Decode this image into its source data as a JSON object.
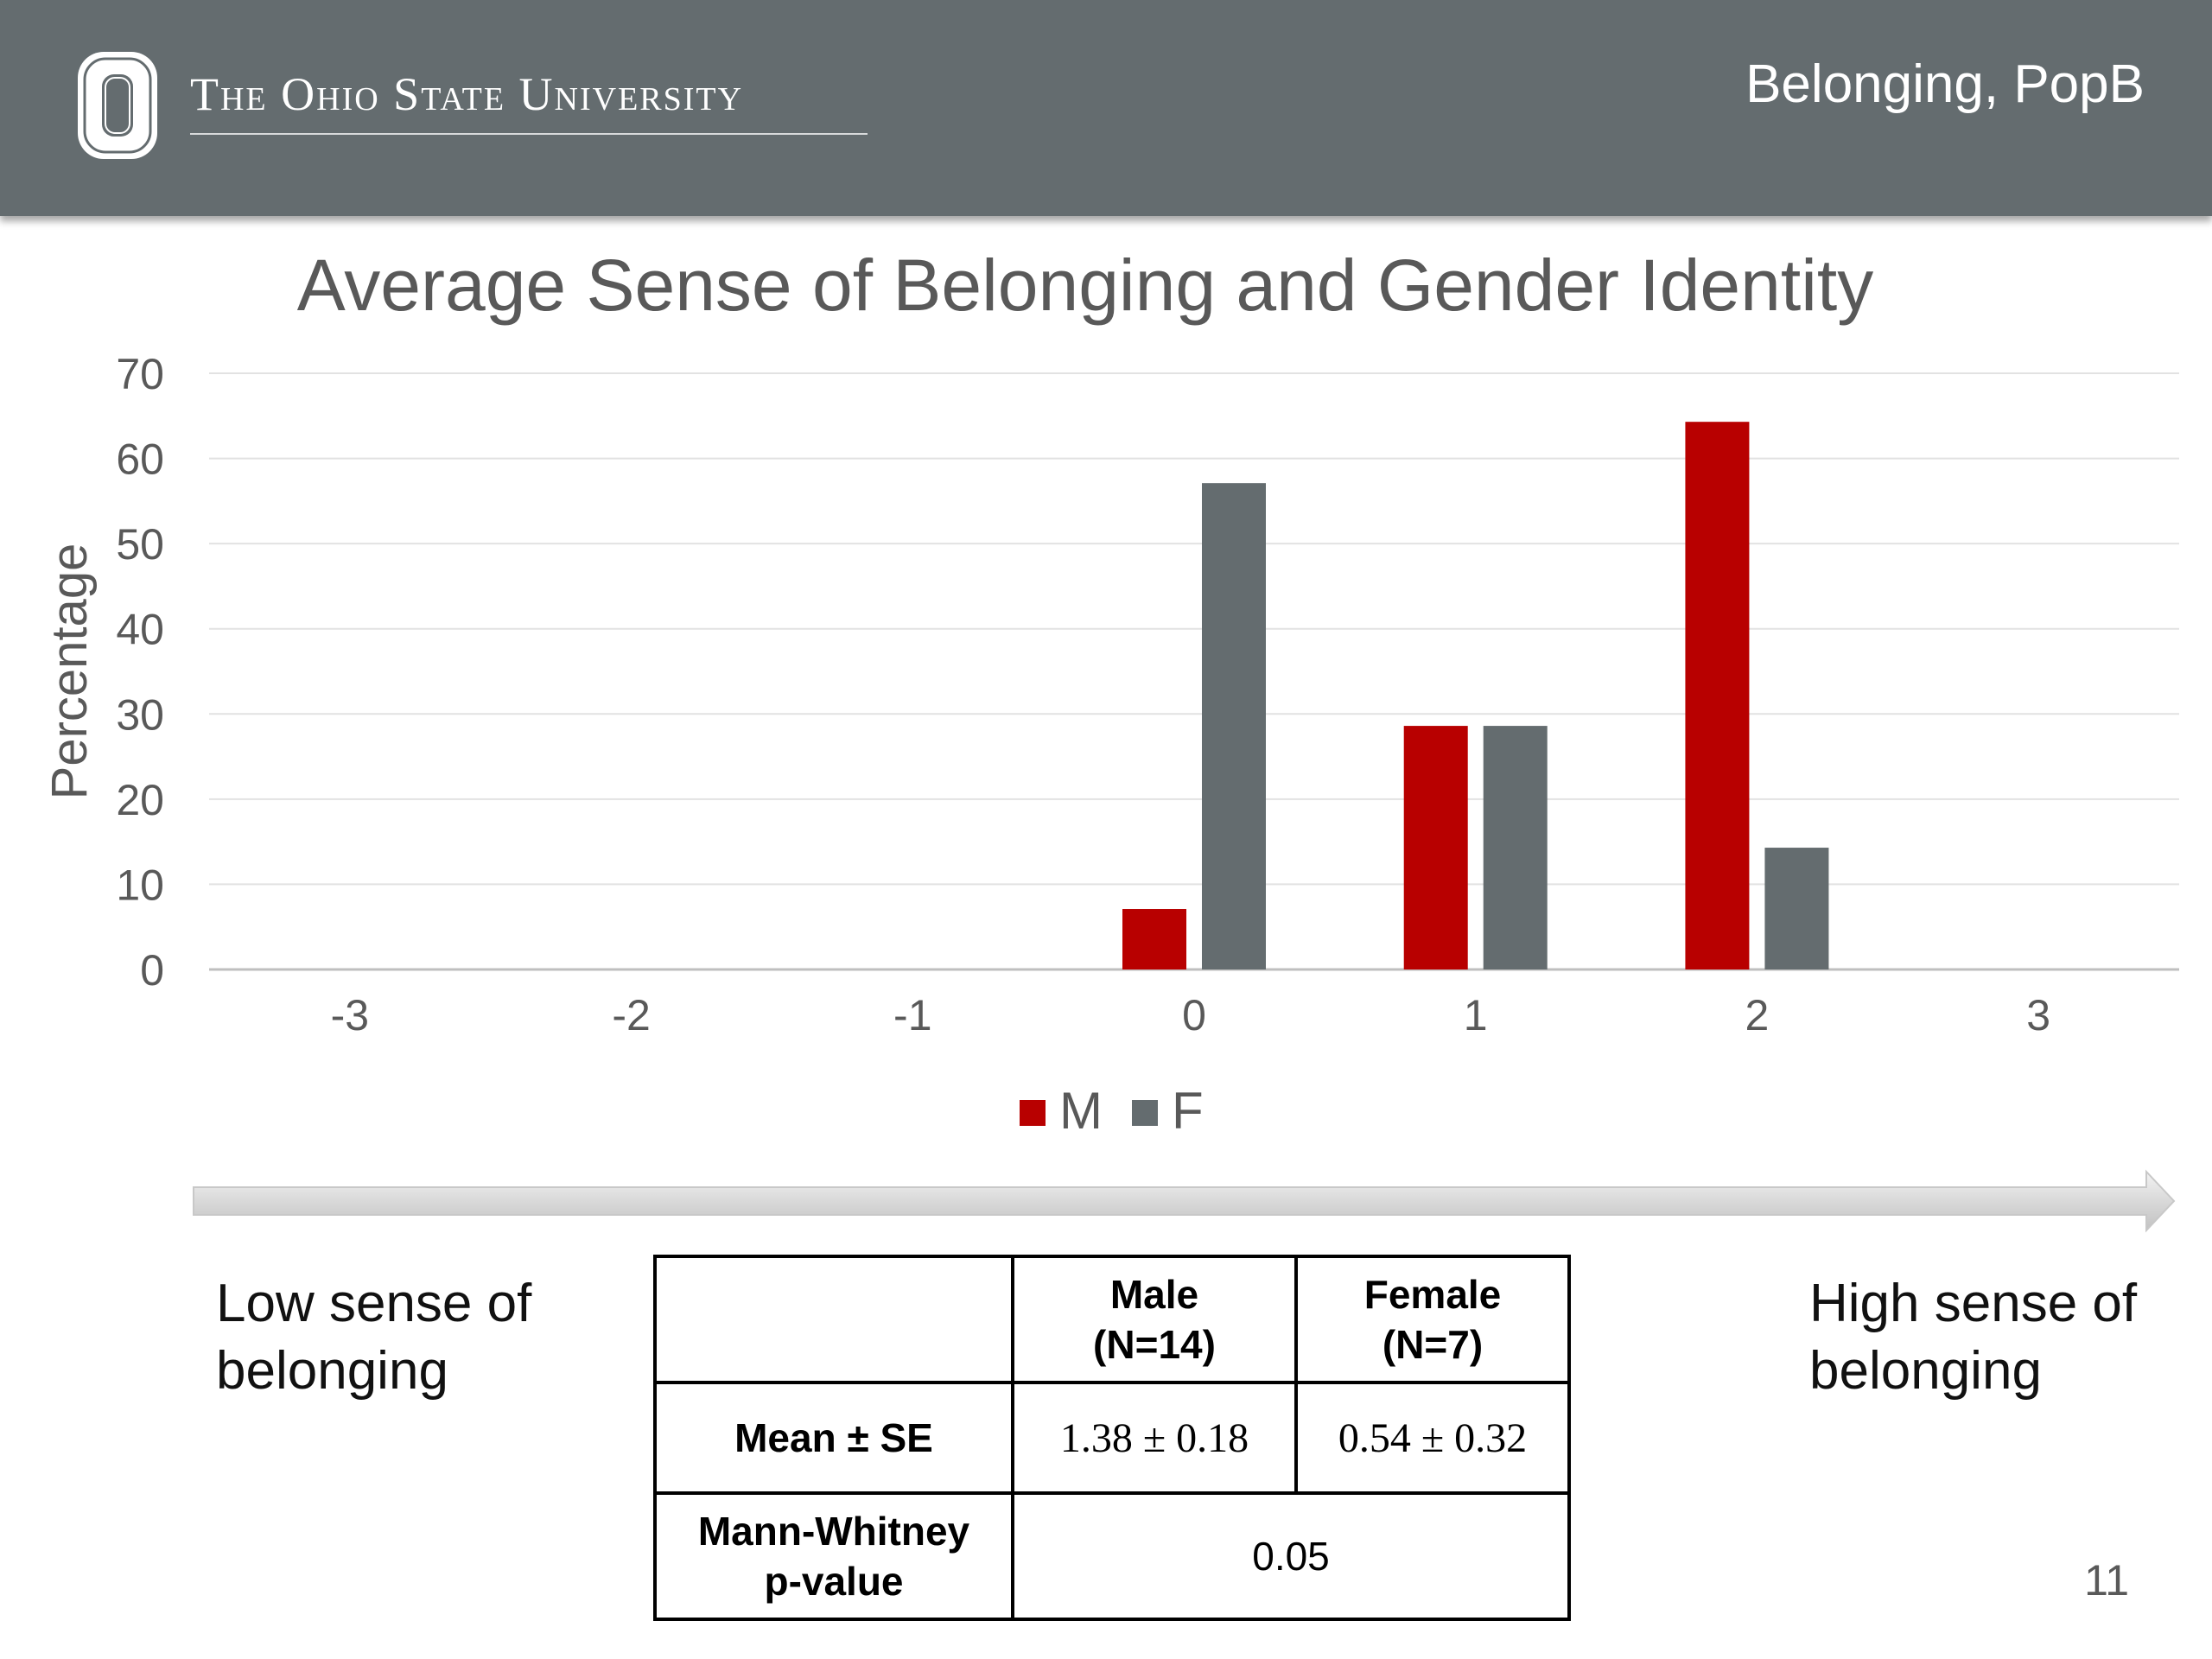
{
  "header": {
    "university": "The Ohio State University",
    "title": "Belonging, PopB"
  },
  "chart_data": {
    "type": "bar",
    "title": "Average Sense of Belonging and Gender Identity",
    "xlabel": "",
    "ylabel": "Percentage",
    "categories": [
      "-3",
      "-2",
      "-1",
      "0",
      "1",
      "2",
      "3"
    ],
    "series": [
      {
        "name": "M",
        "color": "#b80000",
        "values": [
          0,
          0,
          0,
          7.1,
          28.6,
          64.3,
          0
        ]
      },
      {
        "name": "F",
        "color": "#646c6f",
        "values": [
          0,
          0,
          0,
          57.1,
          28.6,
          14.3,
          0
        ]
      }
    ],
    "ylim": [
      0,
      70
    ],
    "yticks": [
      0,
      10,
      20,
      30,
      40,
      50,
      60,
      70
    ],
    "grid": true,
    "legend": "bottom"
  },
  "scale": {
    "low": "Low sense of belonging",
    "high": "High sense of belonging"
  },
  "stats_table": {
    "male_header": "Male",
    "male_n": "(N=14)",
    "female_header": "Female",
    "female_n": "(N=7)",
    "mean_label": "Mean ± SE",
    "male_mean": "1.38 ± 0.18",
    "female_mean": "0.54 ± 0.32",
    "mw_label_1": "Mann-Whitney",
    "mw_label_2": "p-value",
    "mw_value": "0.05"
  },
  "page_number": "11"
}
